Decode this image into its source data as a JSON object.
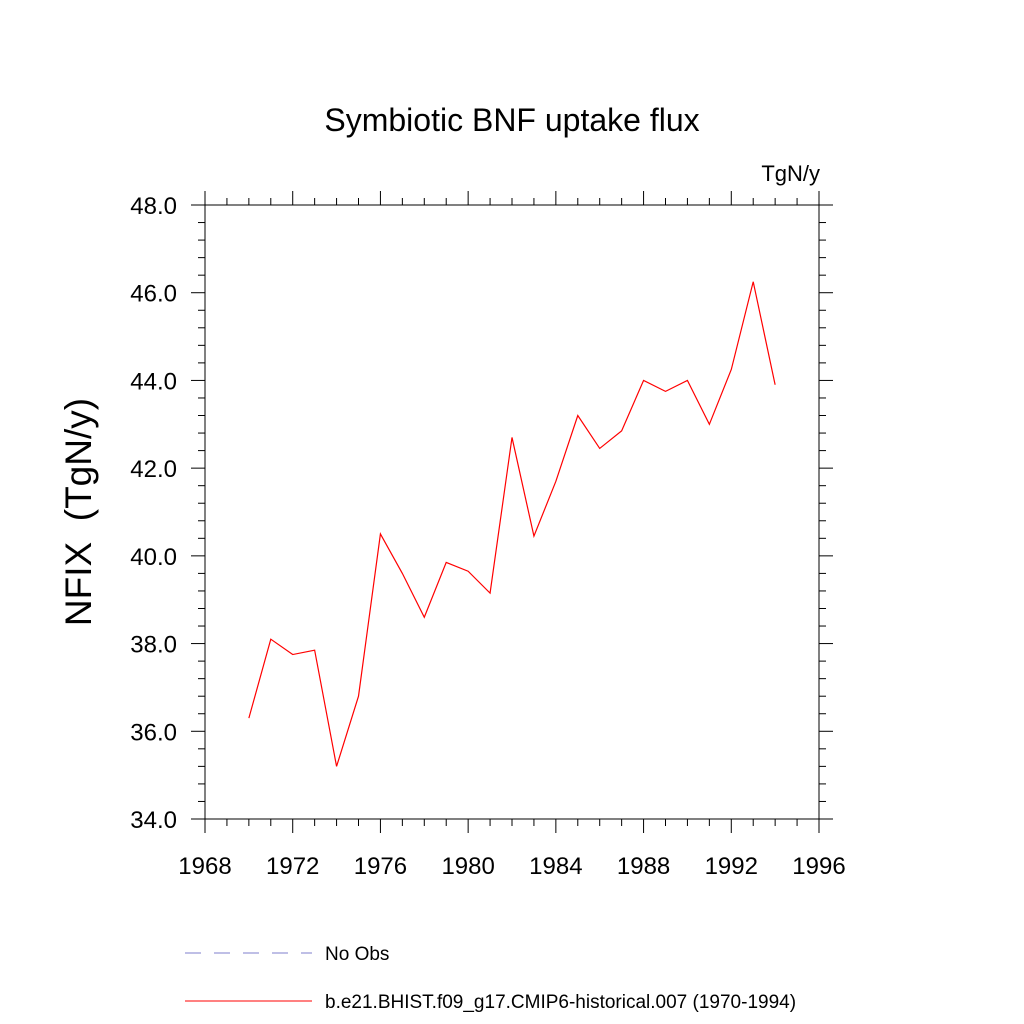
{
  "chart_data": {
    "type": "line",
    "title": "Symbiotic BNF uptake flux",
    "units": "TgN/y",
    "xlabel": "",
    "ylabel": "NFIX  (TgN/y)",
    "xlim": [
      1968,
      1996
    ],
    "ylim": [
      34.0,
      48.0
    ],
    "x_major_ticks": [
      1968,
      1972,
      1976,
      1980,
      1984,
      1988,
      1992,
      1996
    ],
    "x_tick_labels": [
      "1968",
      "1972",
      "1976",
      "1980",
      "1984",
      "1988",
      "1992",
      "1996"
    ],
    "y_major_ticks": [
      34,
      36,
      38,
      40,
      42,
      44,
      46,
      48
    ],
    "y_tick_labels": [
      "34.0",
      "36.0",
      "38.0",
      "40.0",
      "42.0",
      "44.0",
      "46.0",
      "48.0"
    ],
    "x_minor_step": 1,
    "y_minor_step": 0.4,
    "grid": false,
    "legend_position": "bottom",
    "series": [
      {
        "name": "b.e21.BHIST.f09_g17.CMIP6-historical.007 (1970-1994)",
        "color": "#ff0000",
        "style": "solid",
        "x": [
          1970,
          1971,
          1972,
          1973,
          1974,
          1975,
          1976,
          1977,
          1978,
          1979,
          1980,
          1981,
          1982,
          1983,
          1984,
          1985,
          1986,
          1987,
          1988,
          1989,
          1990,
          1991,
          1992,
          1993,
          1994
        ],
        "values": [
          36.3,
          38.1,
          37.75,
          37.85,
          35.2,
          36.8,
          40.5,
          39.6,
          38.6,
          39.85,
          39.65,
          39.15,
          42.7,
          40.45,
          41.7,
          43.2,
          42.45,
          42.85,
          44.0,
          43.75,
          44.0,
          43.0,
          44.25,
          46.25,
          43.9
        ]
      }
    ],
    "legend": [
      {
        "label": "No Obs",
        "color": "#7f7fcc",
        "style": "dashed"
      },
      {
        "label": "b.e21.BHIST.f09_g17.CMIP6-historical.007 (1970-1994)",
        "color": "#ff0000",
        "style": "solid"
      }
    ]
  }
}
